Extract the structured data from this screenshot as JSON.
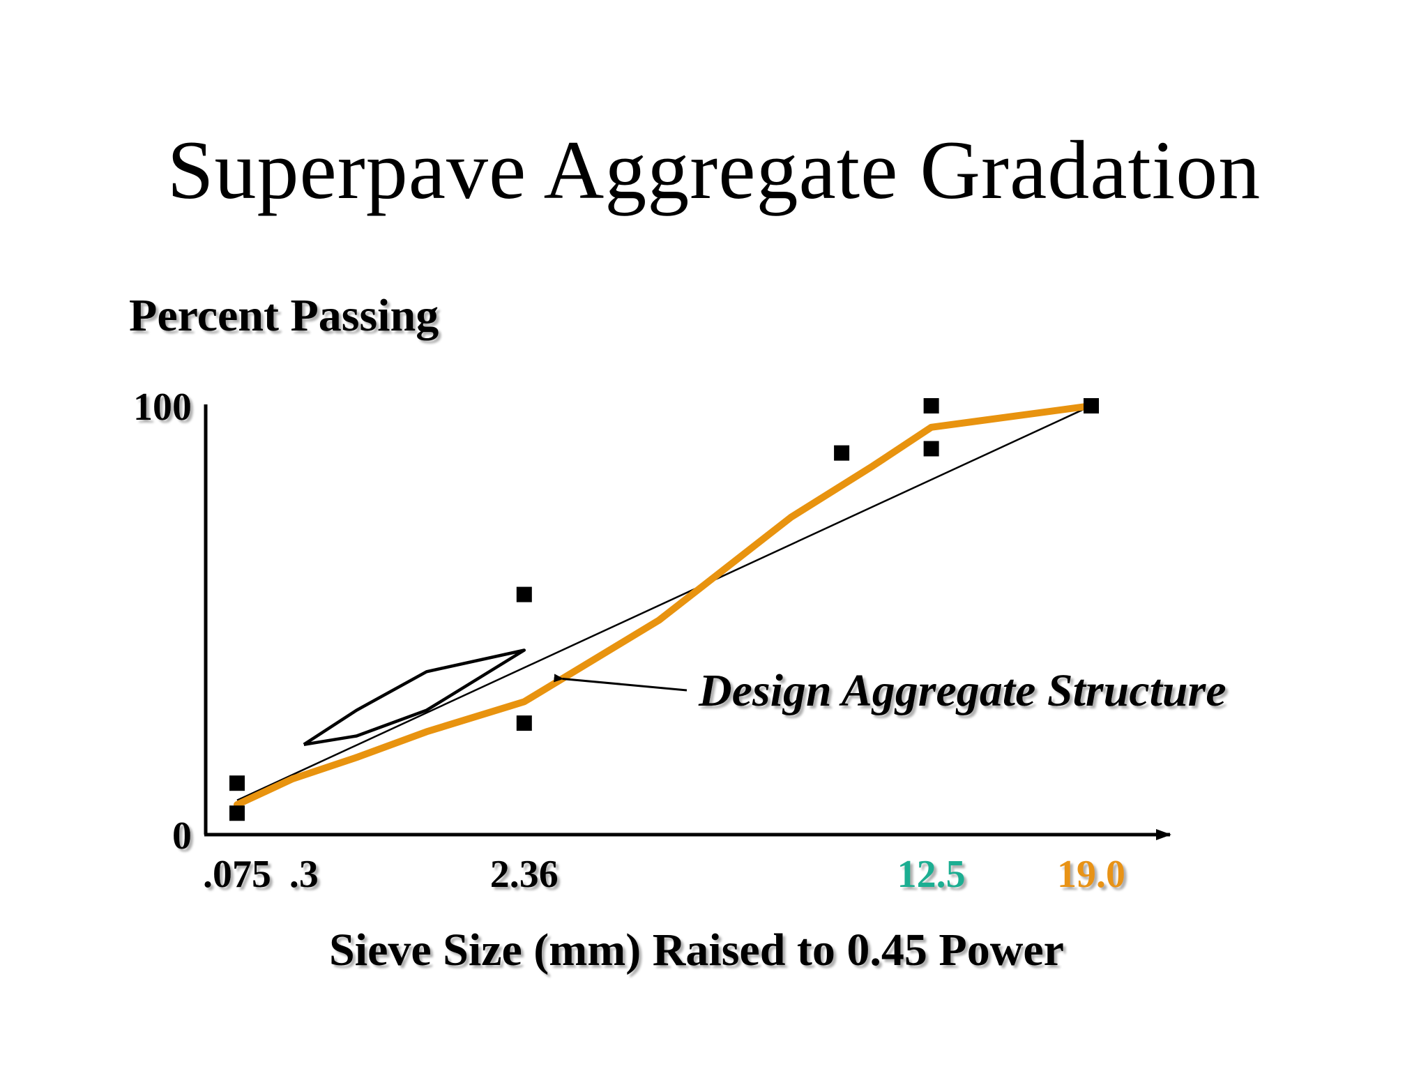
{
  "slide": {
    "title": "Superpave Aggregate Gradation"
  },
  "chart_data": {
    "type": "line",
    "title": "",
    "xlabel": "Sieve Size (mm) Raised to 0.45 Power",
    "ylabel": "Percent Passing",
    "x_scale": "power 0.45",
    "xlim": [
      0.075,
      19.0
    ],
    "ylim": [
      0,
      100
    ],
    "y_ticks": [
      {
        "value": 0,
        "label": "0"
      },
      {
        "value": 100,
        "label": "100"
      }
    ],
    "x_ticks": [
      {
        "value": 0.075,
        "label": ".075",
        "color": "#000000"
      },
      {
        "value": 0.3,
        "label": ".3",
        "color": "#000000"
      },
      {
        "value": 2.36,
        "label": "2.36",
        "color": "#000000"
      },
      {
        "value": 12.5,
        "label": "12.5",
        "color": "#1fae92"
      },
      {
        "value": 19.0,
        "label": "19.0",
        "color": "#e89313"
      }
    ],
    "grid": false,
    "maximum_density_line": [
      {
        "x": 0.075,
        "y": 8
      },
      {
        "x": 19.0,
        "y": 100
      }
    ],
    "restricted_zone": [
      {
        "x": 0.3,
        "y": 21
      },
      {
        "x": 0.6,
        "y": 29
      },
      {
        "x": 1.18,
        "y": 38
      },
      {
        "x": 2.36,
        "y": 43
      },
      {
        "x": 1.18,
        "y": 29
      },
      {
        "x": 0.6,
        "y": 23
      },
      {
        "x": 0.3,
        "y": 21
      }
    ],
    "control_points": [
      {
        "x": 0.075,
        "y": 12
      },
      {
        "x": 0.075,
        "y": 5
      },
      {
        "x": 2.36,
        "y": 56
      },
      {
        "x": 2.36,
        "y": 26
      },
      {
        "x": 9.5,
        "y": 89
      },
      {
        "x": 12.5,
        "y": 100
      },
      {
        "x": 12.5,
        "y": 90
      },
      {
        "x": 19.0,
        "y": 100
      }
    ],
    "series": [
      {
        "name": "Design Aggregate Structure",
        "color": "#e8930f",
        "points": [
          {
            "x": 0.075,
            "y": 7
          },
          {
            "x": 0.25,
            "y": 13
          },
          {
            "x": 0.6,
            "y": 18
          },
          {
            "x": 1.18,
            "y": 24
          },
          {
            "x": 2.36,
            "y": 31
          },
          {
            "x": 4.75,
            "y": 50
          },
          {
            "x": 8.0,
            "y": 74
          },
          {
            "x": 10.5,
            "y": 86
          },
          {
            "x": 12.5,
            "y": 95
          },
          {
            "x": 19.0,
            "y": 100
          }
        ]
      }
    ],
    "annotation": {
      "text": "Design Aggregate Structure",
      "arrow_target": {
        "x": 2.9,
        "y": 37
      }
    }
  }
}
